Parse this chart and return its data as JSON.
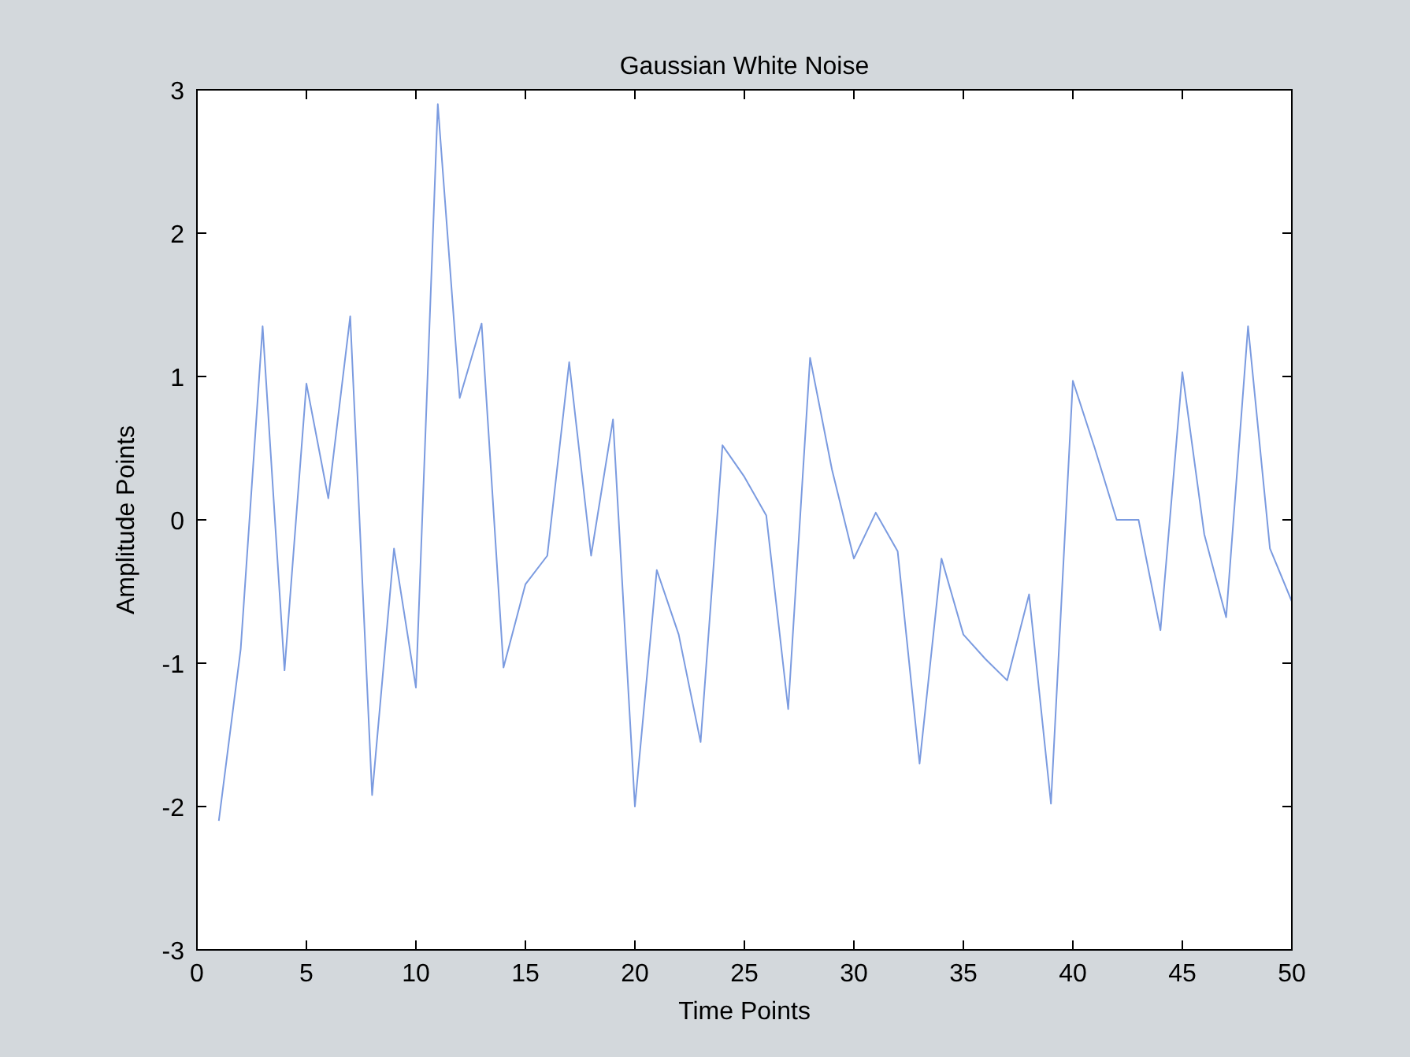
{
  "chart_data": {
    "type": "line",
    "title": "Gaussian White Noise",
    "xlabel": "Time Points",
    "ylabel": "Amplitude Points",
    "x": [
      1,
      2,
      3,
      4,
      5,
      6,
      7,
      8,
      9,
      10,
      11,
      12,
      13,
      14,
      15,
      16,
      17,
      18,
      19,
      20,
      21,
      22,
      23,
      24,
      25,
      26,
      27,
      28,
      29,
      30,
      31,
      32,
      33,
      34,
      35,
      36,
      37,
      38,
      39,
      40,
      41,
      42,
      43,
      44,
      45,
      46,
      47,
      48,
      49,
      50
    ],
    "series": [
      {
        "color": "#7b9be0",
        "values": [
          -2.1,
          -0.9,
          1.35,
          -1.05,
          0.95,
          0.15,
          1.42,
          -1.92,
          -0.2,
          -1.17,
          2.9,
          0.85,
          1.37,
          -1.03,
          -0.45,
          -0.25,
          1.1,
          -0.25,
          0.7,
          -2.0,
          -0.35,
          -0.8,
          -1.55,
          0.52,
          0.3,
          0.03,
          -1.32,
          1.13,
          0.35,
          -0.27,
          0.05,
          -0.22,
          -1.7,
          -0.27,
          -0.8,
          -0.97,
          -1.12,
          -0.52,
          -1.98,
          0.97,
          0.5,
          0.0,
          0.0,
          -0.77,
          1.03,
          -0.1,
          -0.68,
          1.35,
          -0.2,
          -0.57
        ]
      }
    ],
    "xlim": [
      0,
      50
    ],
    "xticks": [
      0,
      5,
      10,
      15,
      20,
      25,
      30,
      35,
      40,
      45,
      50
    ],
    "ylim": [
      -3,
      3
    ],
    "yticks": [
      -3,
      -2,
      -1,
      0,
      1,
      2,
      3
    ],
    "grid": false,
    "marker": "none",
    "line_style": "solid"
  }
}
